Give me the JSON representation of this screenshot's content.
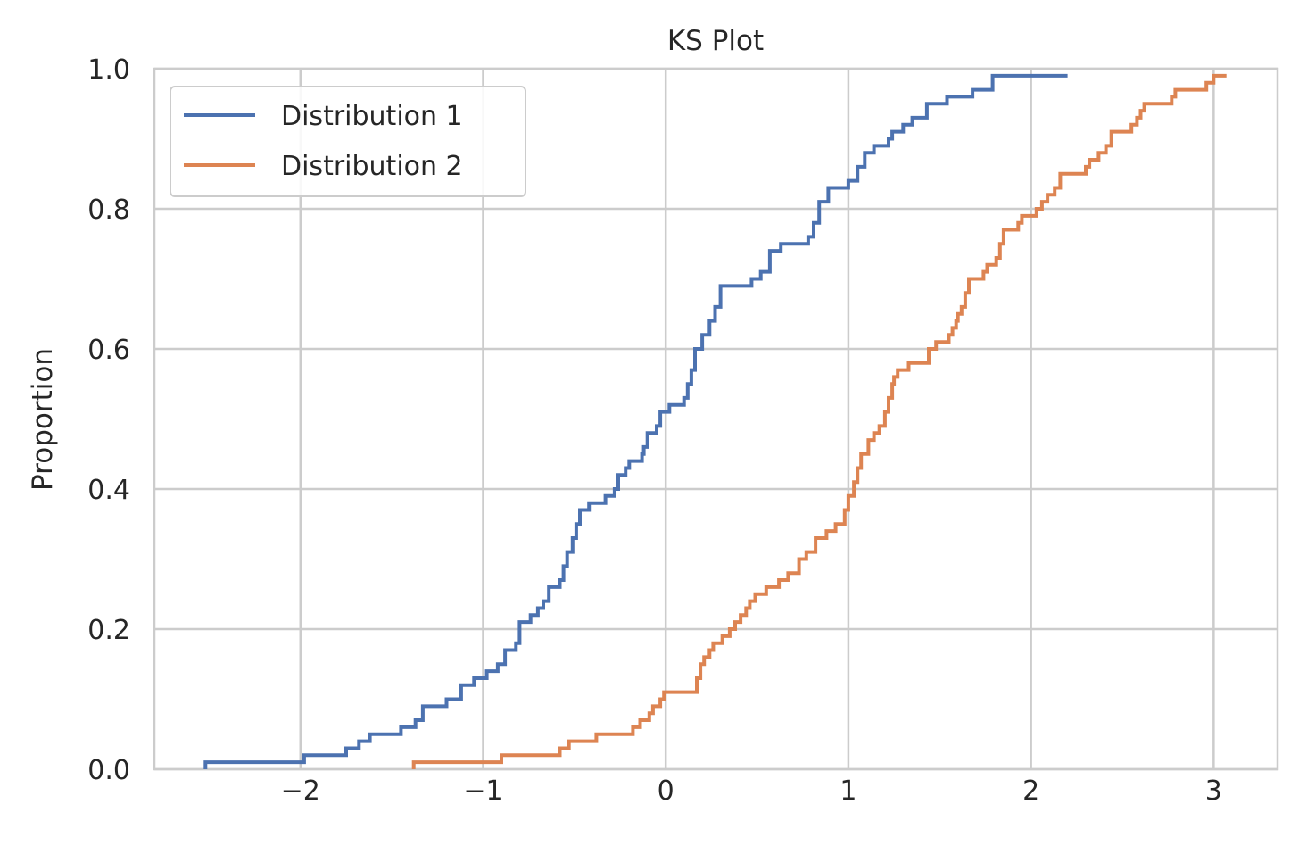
{
  "chart_data": {
    "type": "line",
    "drawstyle": "steps-post",
    "title": "KS Plot",
    "xlabel": "",
    "ylabel": "Proportion",
    "xlim": [
      -2.8,
      3.35
    ],
    "ylim": [
      0,
      1.0
    ],
    "xticks": [
      -2,
      -1,
      0,
      1,
      2,
      3
    ],
    "xtick_labels": [
      "−2",
      "−1",
      "0",
      "1",
      "2",
      "3"
    ],
    "yticks": [
      0,
      0.2,
      0.4,
      0.6,
      0.8,
      1.0
    ],
    "ytick_labels": [
      "0.0",
      "0.2",
      "0.4",
      "0.6",
      "0.8",
      "1.0"
    ],
    "grid": true,
    "legend_position": "top-left",
    "series": [
      {
        "name": "Distribution 1",
        "color": "#4c72b0",
        "points": [
          [
            -2.52,
            0.01
          ],
          [
            -1.98,
            0.02
          ],
          [
            -1.75,
            0.03
          ],
          [
            -1.68,
            0.04
          ],
          [
            -1.62,
            0.05
          ],
          [
            -1.45,
            0.06
          ],
          [
            -1.37,
            0.07
          ],
          [
            -1.33,
            0.09
          ],
          [
            -1.2,
            0.1
          ],
          [
            -1.12,
            0.12
          ],
          [
            -1.05,
            0.13
          ],
          [
            -0.98,
            0.14
          ],
          [
            -0.92,
            0.15
          ],
          [
            -0.88,
            0.17
          ],
          [
            -0.82,
            0.18
          ],
          [
            -0.8,
            0.21
          ],
          [
            -0.74,
            0.22
          ],
          [
            -0.7,
            0.23
          ],
          [
            -0.67,
            0.24
          ],
          [
            -0.64,
            0.26
          ],
          [
            -0.58,
            0.27
          ],
          [
            -0.56,
            0.29
          ],
          [
            -0.54,
            0.31
          ],
          [
            -0.51,
            0.33
          ],
          [
            -0.49,
            0.35
          ],
          [
            -0.47,
            0.37
          ],
          [
            -0.42,
            0.38
          ],
          [
            -0.33,
            0.39
          ],
          [
            -0.28,
            0.4
          ],
          [
            -0.26,
            0.42
          ],
          [
            -0.22,
            0.43
          ],
          [
            -0.2,
            0.44
          ],
          [
            -0.13,
            0.45
          ],
          [
            -0.12,
            0.46
          ],
          [
            -0.1,
            0.48
          ],
          [
            -0.05,
            0.49
          ],
          [
            -0.03,
            0.51
          ],
          [
            0.02,
            0.52
          ],
          [
            0.1,
            0.53
          ],
          [
            0.12,
            0.55
          ],
          [
            0.14,
            0.57
          ],
          [
            0.16,
            0.6
          ],
          [
            0.2,
            0.62
          ],
          [
            0.24,
            0.64
          ],
          [
            0.27,
            0.66
          ],
          [
            0.3,
            0.69
          ],
          [
            0.47,
            0.7
          ],
          [
            0.52,
            0.71
          ],
          [
            0.57,
            0.74
          ],
          [
            0.63,
            0.75
          ],
          [
            0.78,
            0.76
          ],
          [
            0.81,
            0.78
          ],
          [
            0.84,
            0.81
          ],
          [
            0.89,
            0.83
          ],
          [
            1.0,
            0.84
          ],
          [
            1.05,
            0.86
          ],
          [
            1.09,
            0.88
          ],
          [
            1.14,
            0.89
          ],
          [
            1.22,
            0.9
          ],
          [
            1.24,
            0.91
          ],
          [
            1.3,
            0.92
          ],
          [
            1.35,
            0.93
          ],
          [
            1.43,
            0.95
          ],
          [
            1.54,
            0.96
          ],
          [
            1.68,
            0.97
          ],
          [
            1.79,
            0.99
          ],
          [
            2.2,
            0.99
          ]
        ]
      },
      {
        "name": "Distribution 2",
        "color": "#dd8452",
        "points": [
          [
            -1.38,
            0.01
          ],
          [
            -0.9,
            0.02
          ],
          [
            -0.58,
            0.03
          ],
          [
            -0.53,
            0.04
          ],
          [
            -0.38,
            0.05
          ],
          [
            -0.18,
            0.06
          ],
          [
            -0.14,
            0.07
          ],
          [
            -0.09,
            0.08
          ],
          [
            -0.07,
            0.09
          ],
          [
            -0.03,
            0.1
          ],
          [
            -0.01,
            0.11
          ],
          [
            0.17,
            0.13
          ],
          [
            0.19,
            0.15
          ],
          [
            0.21,
            0.16
          ],
          [
            0.24,
            0.17
          ],
          [
            0.26,
            0.18
          ],
          [
            0.31,
            0.19
          ],
          [
            0.35,
            0.2
          ],
          [
            0.38,
            0.21
          ],
          [
            0.41,
            0.22
          ],
          [
            0.44,
            0.23
          ],
          [
            0.46,
            0.24
          ],
          [
            0.49,
            0.25
          ],
          [
            0.55,
            0.26
          ],
          [
            0.62,
            0.27
          ],
          [
            0.67,
            0.28
          ],
          [
            0.73,
            0.3
          ],
          [
            0.77,
            0.31
          ],
          [
            0.82,
            0.33
          ],
          [
            0.88,
            0.34
          ],
          [
            0.93,
            0.35
          ],
          [
            0.98,
            0.37
          ],
          [
            1.0,
            0.39
          ],
          [
            1.03,
            0.41
          ],
          [
            1.05,
            0.43
          ],
          [
            1.07,
            0.45
          ],
          [
            1.11,
            0.47
          ],
          [
            1.14,
            0.48
          ],
          [
            1.17,
            0.49
          ],
          [
            1.2,
            0.51
          ],
          [
            1.22,
            0.53
          ],
          [
            1.24,
            0.55
          ],
          [
            1.25,
            0.56
          ],
          [
            1.27,
            0.57
          ],
          [
            1.33,
            0.58
          ],
          [
            1.44,
            0.6
          ],
          [
            1.48,
            0.61
          ],
          [
            1.55,
            0.62
          ],
          [
            1.57,
            0.63
          ],
          [
            1.59,
            0.64
          ],
          [
            1.6,
            0.65
          ],
          [
            1.62,
            0.66
          ],
          [
            1.64,
            0.68
          ],
          [
            1.66,
            0.7
          ],
          [
            1.74,
            0.71
          ],
          [
            1.76,
            0.72
          ],
          [
            1.81,
            0.73
          ],
          [
            1.83,
            0.75
          ],
          [
            1.85,
            0.77
          ],
          [
            1.93,
            0.78
          ],
          [
            1.95,
            0.79
          ],
          [
            2.03,
            0.8
          ],
          [
            2.06,
            0.81
          ],
          [
            2.09,
            0.82
          ],
          [
            2.13,
            0.83
          ],
          [
            2.16,
            0.85
          ],
          [
            2.3,
            0.86
          ],
          [
            2.32,
            0.87
          ],
          [
            2.37,
            0.88
          ],
          [
            2.41,
            0.89
          ],
          [
            2.44,
            0.91
          ],
          [
            2.55,
            0.92
          ],
          [
            2.58,
            0.93
          ],
          [
            2.6,
            0.94
          ],
          [
            2.62,
            0.95
          ],
          [
            2.77,
            0.96
          ],
          [
            2.79,
            0.97
          ],
          [
            2.96,
            0.98
          ],
          [
            3.0,
            0.99
          ],
          [
            3.07,
            0.99
          ]
        ]
      }
    ]
  }
}
